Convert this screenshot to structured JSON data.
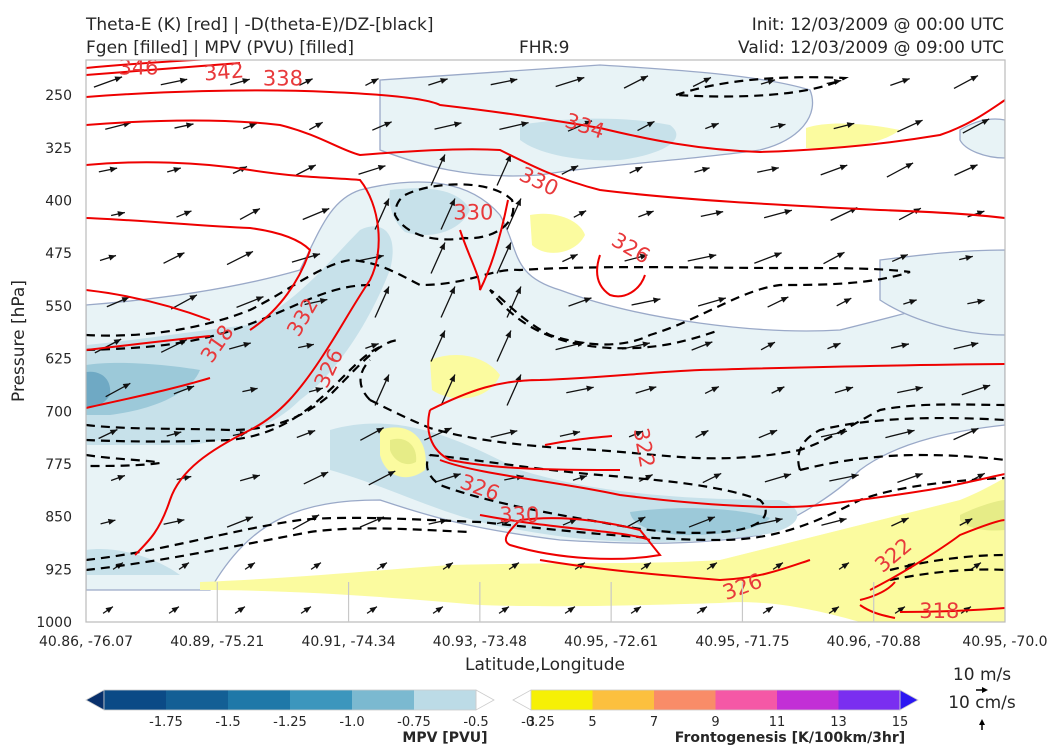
{
  "header": {
    "title_line1": "Theta-E (K) [red] | -D(theta-E)/DZ-[black]",
    "title_line2": "Fgen [filled] | MPV (PVU) [filled]",
    "fhr": "FHR:9",
    "init": "Init: 12/03/2009 @ 00:00 UTC",
    "valid": "Valid: 12/03/2009 @ 09:00 UTC"
  },
  "chart_data": {
    "type": "cross-section",
    "xlabel": "Latitude,Longitude",
    "ylabel": "Pressure [hPa]",
    "x_ticks": [
      "40.86, -76.07",
      "40.89, -75.21",
      "40.91, -74.34",
      "40.93, -73.48",
      "40.95, -72.61",
      "40.95, -71.75",
      "40.96, -70.88",
      "40.95, -70.0"
    ],
    "y_ticks": [
      "250",
      "325",
      "400",
      "475",
      "550",
      "625",
      "700",
      "775",
      "850",
      "925",
      "1000"
    ],
    "ylim": [
      200,
      1000
    ],
    "y_inverted": true,
    "theta_e_contour_labels": [
      {
        "text": "346",
        "x": 0.4,
        "p": 211,
        "rot": 0
      },
      {
        "text": "342",
        "x": 1.05,
        "p": 217,
        "rot": -5
      },
      {
        "text": "338",
        "x": 1.5,
        "p": 226,
        "rot": 0
      },
      {
        "text": "334",
        "x": 3.8,
        "p": 294,
        "rot": 18
      },
      {
        "text": "330",
        "x": 3.45,
        "p": 373,
        "rot": 25
      },
      {
        "text": "330",
        "x": 2.95,
        "p": 417,
        "rot": 0
      },
      {
        "text": "326",
        "x": 4.15,
        "p": 468,
        "rot": 30
      },
      {
        "text": "332",
        "x": 1.65,
        "p": 566,
        "rot": -60
      },
      {
        "text": "318",
        "x": 1.0,
        "p": 604,
        "rot": -55
      },
      {
        "text": "326",
        "x": 1.85,
        "p": 639,
        "rot": -65
      },
      {
        "text": "322",
        "x": 4.25,
        "p": 752,
        "rot": 80
      },
      {
        "text": "326",
        "x": 3.0,
        "p": 809,
        "rot": 20
      },
      {
        "text": "330",
        "x": 3.3,
        "p": 848,
        "rot": 0
      },
      {
        "text": "326",
        "x": 5.0,
        "p": 950,
        "rot": -20
      },
      {
        "text": "322",
        "x": 6.15,
        "p": 905,
        "rot": -40
      },
      {
        "text": "318",
        "x": 6.5,
        "p": 984,
        "rot": 0
      }
    ],
    "mpv_colorbar": {
      "title": "MPV [PVU]",
      "labels": [
        "-1.75",
        "-1.5",
        "-1.25",
        "-1.0",
        "-0.75",
        "-0.5",
        "-0.25"
      ],
      "colors": [
        "#08306b",
        "#0b4a86",
        "#135f95",
        "#1f78a8",
        "#3c96bd",
        "#7bb9d0",
        "#bcdbe6",
        "#ffffff"
      ]
    },
    "fgen_colorbar": {
      "title": "Frontogenesis [K/100km/3hr]",
      "labels": [
        "3",
        "5",
        "7",
        "9",
        "11",
        "13",
        "15"
      ],
      "colors": [
        "#ffffff",
        "#f6f005",
        "#fcc03f",
        "#f98c68",
        "#f558a6",
        "#c22fd6",
        "#7a2ef0",
        "#2b17f2"
      ]
    },
    "vector_key": {
      "label1": "10 m/s",
      "label2": "10 cm/s"
    }
  }
}
